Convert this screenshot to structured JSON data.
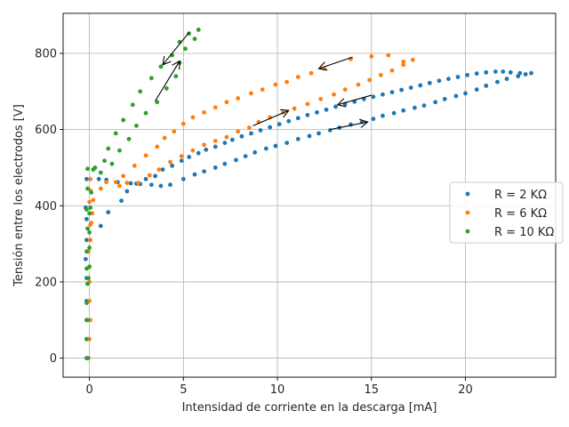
{
  "chart_data": {
    "type": "scatter",
    "title": "",
    "xlabel": "Intensidad de corriente en la descarga [mA]",
    "ylabel": "Tensión entre los electrodos [V]",
    "xlim": [
      -1.4,
      24.8
    ],
    "ylim": [
      -50,
      905
    ],
    "xticks": [
      0,
      5,
      10,
      15,
      20
    ],
    "yticks": [
      0,
      200,
      400,
      600,
      800
    ],
    "grid": true,
    "legend_position": "center-right",
    "series": [
      {
        "name": "R = 2 KΩ",
        "color": "#1f77b4",
        "points": [
          [
            -0.15,
            0
          ],
          [
            -0.15,
            50
          ],
          [
            -0.15,
            100
          ],
          [
            -0.15,
            150
          ],
          [
            -0.15,
            210
          ],
          [
            -0.2,
            260
          ],
          [
            -0.15,
            310
          ],
          [
            -0.15,
            365
          ],
          [
            -0.2,
            395
          ],
          [
            -0.15,
            470
          ],
          [
            0.5,
            470
          ],
          [
            0.9,
            468
          ],
          [
            1.5,
            462
          ],
          [
            2.2,
            459
          ],
          [
            2.7,
            457
          ],
          [
            3.3,
            455
          ],
          [
            3.8,
            452
          ],
          [
            4.3,
            455
          ],
          [
            5,
            470
          ],
          [
            5.6,
            482
          ],
          [
            6.1,
            490
          ],
          [
            6.7,
            500
          ],
          [
            7.2,
            510
          ],
          [
            7.8,
            520
          ],
          [
            8.3,
            530
          ],
          [
            8.8,
            540
          ],
          [
            9.4,
            550
          ],
          [
            9.9,
            557
          ],
          [
            10.5,
            565
          ],
          [
            11.1,
            575
          ],
          [
            11.7,
            583
          ],
          [
            12.2,
            590
          ],
          [
            12.8,
            598
          ],
          [
            13.3,
            605
          ],
          [
            13.9,
            613
          ],
          [
            14.5,
            620
          ],
          [
            15.1,
            628
          ],
          [
            15.6,
            636
          ],
          [
            16.2,
            643
          ],
          [
            16.7,
            650
          ],
          [
            17.3,
            657
          ],
          [
            17.8,
            663
          ],
          [
            18.4,
            672
          ],
          [
            18.9,
            680
          ],
          [
            19.5,
            688
          ],
          [
            20,
            695
          ],
          [
            20.6,
            705
          ],
          [
            21.1,
            715
          ],
          [
            21.7,
            725
          ],
          [
            22.2,
            733
          ],
          [
            22.8,
            740
          ],
          [
            23.2,
            745
          ],
          [
            23.5,
            748
          ],
          [
            22.9,
            748
          ],
          [
            22.4,
            750
          ],
          [
            22,
            752
          ],
          [
            21.6,
            752
          ],
          [
            21.1,
            750
          ],
          [
            20.6,
            747
          ],
          [
            20.1,
            743
          ],
          [
            19.6,
            738
          ],
          [
            19.1,
            733
          ],
          [
            18.6,
            728
          ],
          [
            18.1,
            722
          ],
          [
            17.6,
            716
          ],
          [
            17.1,
            710
          ],
          [
            16.6,
            704
          ],
          [
            16.1,
            698
          ],
          [
            15.6,
            692
          ],
          [
            15.1,
            686
          ],
          [
            14.6,
            680
          ],
          [
            14.1,
            673
          ],
          [
            13.6,
            667
          ],
          [
            13.1,
            660
          ],
          [
            12.6,
            652
          ],
          [
            12.1,
            645
          ],
          [
            11.6,
            638
          ],
          [
            11.1,
            630
          ],
          [
            10.6,
            622
          ],
          [
            10.1,
            614
          ],
          [
            9.6,
            606
          ],
          [
            9.1,
            598
          ],
          [
            8.6,
            590
          ],
          [
            8.1,
            582
          ],
          [
            7.6,
            573
          ],
          [
            7.2,
            565
          ],
          [
            6.7,
            555
          ],
          [
            6.2,
            547
          ],
          [
            5.8,
            538
          ],
          [
            5.3,
            528
          ],
          [
            4.9,
            518
          ],
          [
            4.4,
            505
          ],
          [
            3.9,
            495
          ],
          [
            3.5,
            478
          ],
          [
            3,
            470
          ],
          [
            2.5,
            458
          ],
          [
            2,
            438
          ],
          [
            1.7,
            413
          ],
          [
            1,
            383
          ],
          [
            0.6,
            347
          ]
        ]
      },
      {
        "name": "R = 6 KΩ",
        "color": "#ff7f0e",
        "points": [
          [
            -0.05,
            0
          ],
          [
            0,
            50
          ],
          [
            0.05,
            100
          ],
          [
            0,
            150
          ],
          [
            0,
            200
          ],
          [
            0,
            240
          ],
          [
            -0.05,
            280
          ],
          [
            0.05,
            310
          ],
          [
            0.05,
            350
          ],
          [
            0.15,
            380
          ],
          [
            0,
            410
          ],
          [
            0.05,
            440
          ],
          [
            0.05,
            470
          ],
          [
            0.9,
            462
          ],
          [
            1.6,
            452
          ],
          [
            2,
            460
          ],
          [
            2.6,
            460
          ],
          [
            3.2,
            480
          ],
          [
            3.7,
            495
          ],
          [
            4.3,
            515
          ],
          [
            4.9,
            530
          ],
          [
            5.5,
            545
          ],
          [
            6.1,
            560
          ],
          [
            6.7,
            570
          ],
          [
            7.3,
            580
          ],
          [
            7.9,
            595
          ],
          [
            8.5,
            605
          ],
          [
            9,
            620
          ],
          [
            9.6,
            632
          ],
          [
            10.3,
            645
          ],
          [
            10.9,
            655
          ],
          [
            11.6,
            667
          ],
          [
            12.3,
            680
          ],
          [
            13,
            692
          ],
          [
            13.6,
            705
          ],
          [
            14.3,
            718
          ],
          [
            14.9,
            730
          ],
          [
            15.5,
            743
          ],
          [
            16.1,
            755
          ],
          [
            16.7,
            770
          ],
          [
            17.2,
            783
          ],
          [
            16.7,
            778
          ],
          [
            15.9,
            795
          ],
          [
            15,
            792
          ],
          [
            13.9,
            785
          ],
          [
            12.5,
            760
          ],
          [
            11.8,
            748
          ],
          [
            11.1,
            738
          ],
          [
            10.5,
            725
          ],
          [
            9.9,
            718
          ],
          [
            9.2,
            705
          ],
          [
            8.6,
            695
          ],
          [
            7.9,
            682
          ],
          [
            7.3,
            672
          ],
          [
            6.7,
            658
          ],
          [
            6.1,
            645
          ],
          [
            5.5,
            632
          ],
          [
            5,
            615
          ],
          [
            4.5,
            595
          ],
          [
            4,
            578
          ],
          [
            3.6,
            555
          ],
          [
            3,
            532
          ],
          [
            2.4,
            505
          ],
          [
            1.8,
            478
          ],
          [
            1.4,
            462
          ],
          [
            0.6,
            445
          ],
          [
            0.2,
            415
          ],
          [
            0.1,
            355
          ],
          [
            0.05,
            310
          ]
        ]
      },
      {
        "name": "R = 10 KΩ",
        "color": "#2ca02c",
        "points": [
          [
            -0.1,
            0
          ],
          [
            -0.15,
            50
          ],
          [
            -0.1,
            100
          ],
          [
            -0.15,
            145
          ],
          [
            -0.1,
            195
          ],
          [
            -0.15,
            235
          ],
          [
            -0.15,
            280
          ],
          [
            -0.1,
            340
          ],
          [
            -0.15,
            390
          ],
          [
            -0.1,
            445
          ],
          [
            -0.1,
            497
          ],
          [
            0.3,
            500
          ],
          [
            0.6,
            487
          ],
          [
            0.8,
            518
          ],
          [
            1,
            550
          ],
          [
            1.2,
            510
          ],
          [
            1.4,
            590
          ],
          [
            1.6,
            545
          ],
          [
            1.8,
            625
          ],
          [
            2.1,
            575
          ],
          [
            2.3,
            665
          ],
          [
            2.5,
            610
          ],
          [
            2.7,
            700
          ],
          [
            3,
            643
          ],
          [
            3.3,
            735
          ],
          [
            3.6,
            672
          ],
          [
            3.8,
            765
          ],
          [
            4.1,
            708
          ],
          [
            4.4,
            795
          ],
          [
            4.6,
            740
          ],
          [
            4.8,
            830
          ],
          [
            4.8,
            775
          ],
          [
            5.1,
            812
          ],
          [
            5.3,
            852
          ],
          [
            5.6,
            838
          ],
          [
            5.8,
            862
          ],
          [
            0.1,
            435
          ],
          [
            0,
            380
          ],
          [
            0,
            330
          ],
          [
            0,
            290
          ],
          [
            0,
            240
          ],
          [
            -0.05,
            210
          ],
          [
            0.05,
            395
          ],
          [
            0.2,
            495
          ]
        ]
      }
    ],
    "annotations": [
      {
        "type": "arrow",
        "from": [
          5.3,
          855
        ],
        "to": [
          3.9,
          770
        ]
      },
      {
        "type": "arrow",
        "from": [
          3.5,
          675
        ],
        "to": [
          4.8,
          780
        ]
      },
      {
        "type": "arrow",
        "from": [
          14,
          790
        ],
        "to": [
          12.2,
          760
        ]
      },
      {
        "type": "arrow",
        "from": [
          8.7,
          610
        ],
        "to": [
          10.6,
          650
        ]
      },
      {
        "type": "arrow",
        "from": [
          15,
          690
        ],
        "to": [
          13.2,
          665
        ]
      },
      {
        "type": "arrow",
        "from": [
          12.8,
          600
        ],
        "to": [
          14.8,
          620
        ]
      }
    ]
  }
}
